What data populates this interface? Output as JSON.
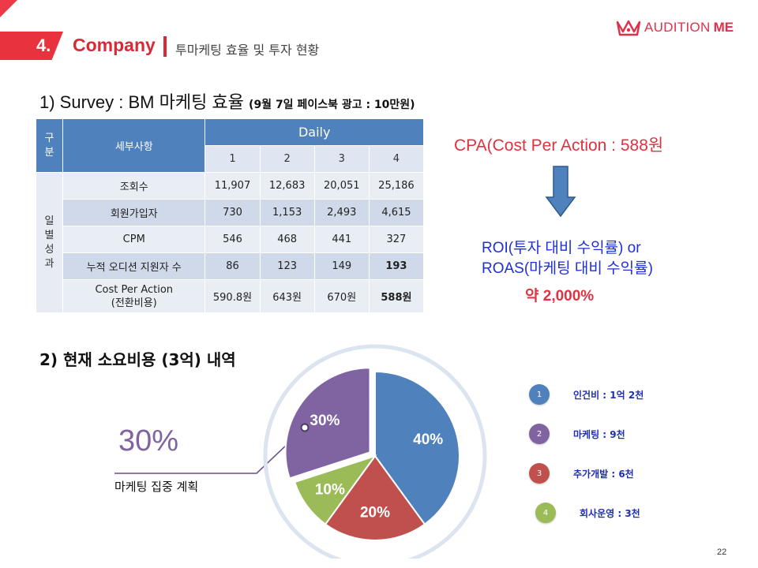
{
  "header": {
    "number": "4.",
    "title": "Company",
    "subtitle": "투마케팅 효율 및 투자 현황",
    "brand_left": "AUDITION",
    "brand_right": "ME",
    "brand_color": "#e0304a",
    "accent_color": "#e8333f"
  },
  "section1": {
    "title": "1) Survey : BM 마케팅 효율",
    "note": "(9월 7일 페이스북 광고 : 10만원)"
  },
  "table": {
    "group_header": "구분",
    "detail_header": "세부사항",
    "daily_header": "Daily",
    "days": [
      "1",
      "2",
      "3",
      "4"
    ],
    "row_group": "일별성과",
    "rows": [
      {
        "label": "조회수",
        "values": [
          "11,907",
          "12,683",
          "20,051",
          "25,186"
        ]
      },
      {
        "label": "회원가입자",
        "values": [
          "730",
          "1,153",
          "2,493",
          "4,615"
        ]
      },
      {
        "label": "CPM",
        "values": [
          "546",
          "468",
          "441",
          "327"
        ]
      },
      {
        "label": "누적 오디션 지원자 수",
        "values": [
          "86",
          "123",
          "149",
          "193"
        ]
      },
      {
        "label_line1": "Cost Per Action",
        "label_line2": "(전환비용)",
        "values": [
          "590.8원",
          "643원",
          "670원",
          "588원"
        ]
      }
    ]
  },
  "cpa": "CPA(Cost Per Action : 588원",
  "roi": {
    "line1": "ROI(투자 대비 수익률) or",
    "line2": "ROAS(마케팅 대비 수익률)",
    "value": "약 2,000%"
  },
  "section2": {
    "title": "2) 현재 소요비용 (3억) 내역",
    "highlight": "30%",
    "highlight_label": "마케팅 집중 계획"
  },
  "chart_data": {
    "type": "pie",
    "categories": [
      "인건비 : 1억 2천",
      "마케팅 : 9천",
      "추가개발 : 6천",
      "회사운영 : 3천"
    ],
    "values": [
      40,
      30,
      20,
      10
    ],
    "labels": [
      "40%",
      "30%",
      "20%",
      "10%"
    ],
    "colors": [
      "#4f81bd",
      "#8064a2",
      "#c0504d",
      "#9bbb59"
    ],
    "legend_numbers": [
      "1",
      "2",
      "3",
      "4"
    ],
    "legend_position": "right"
  },
  "page_number": "22"
}
